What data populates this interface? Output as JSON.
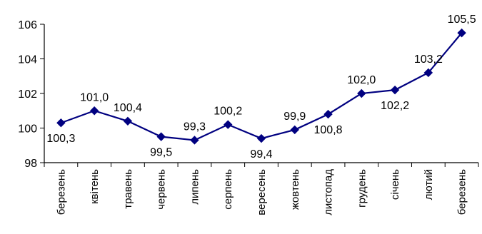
{
  "chart_data": {
    "type": "line",
    "categories": [
      "березень",
      "квітень",
      "травень",
      "червень",
      "липень",
      "серпень",
      "вересень",
      "жовтень",
      "листопад",
      "грудень",
      "січень",
      "лютий",
      "березень"
    ],
    "series": [
      {
        "values": [
          100.3,
          101.0,
          100.4,
          99.5,
          99.3,
          100.2,
          99.4,
          99.9,
          100.8,
          102.0,
          102.2,
          103.2,
          105.5
        ],
        "labels": [
          "100,3",
          "101,0",
          "100,4",
          "99,5",
          "99,3",
          "100,2",
          "99,4",
          "99,9",
          "100,8",
          "102,0",
          "102,2",
          "103,2",
          "105,5"
        ],
        "label_positions": [
          "below",
          "above",
          "above",
          "below",
          "above",
          "above",
          "below",
          "above",
          "below",
          "above",
          "below",
          "above",
          "above"
        ]
      }
    ],
    "ylim": [
      98,
      106
    ],
    "yticks": [
      98,
      100,
      102,
      104,
      106
    ],
    "ytick_labels": [
      "98",
      "100",
      "102",
      "104",
      "106"
    ],
    "grid": false,
    "line_color": "#000080",
    "marker": "diamond"
  }
}
